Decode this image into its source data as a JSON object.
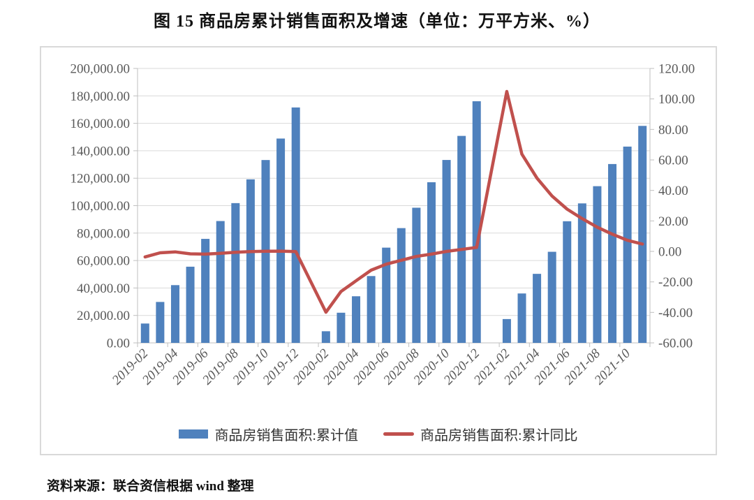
{
  "title": "图 15  商品房累计销售面积及增速（单位：万平方米、%）",
  "source": "资料来源：联合资信根据 wind 整理",
  "colors": {
    "bar": "#4F81BD",
    "line": "#C0504D",
    "grid": "#D9D9D9",
    "axis": "#BFBFBF",
    "tick_text": "#595959",
    "chart_border": "#D9D9D9"
  },
  "chart_data": {
    "type": "combo_bar_line",
    "categories": [
      "2019-02",
      "2019-03",
      "2019-04",
      "2019-05",
      "2019-06",
      "2019-07",
      "2019-08",
      "2019-09",
      "2019-10",
      "2019-11",
      "2019-12",
      "2020-01",
      "2020-02",
      "2020-03",
      "2020-04",
      "2020-05",
      "2020-06",
      "2020-07",
      "2020-08",
      "2020-09",
      "2020-10",
      "2020-11",
      "2020-12",
      "2021-01",
      "2021-02",
      "2021-03",
      "2021-04",
      "2021-05",
      "2021-06",
      "2021-07",
      "2021-08",
      "2021-09",
      "2021-10",
      "2021-11"
    ],
    "series": [
      {
        "name": "商品房销售面积:累计值",
        "type": "bar",
        "y_axis": "left",
        "color": "#4F81BD",
        "values": [
          14102,
          29829,
          42085,
          55518,
          75786,
          88783,
          101849,
          119179,
          133251,
          148905,
          171558,
          null,
          8475,
          21978,
          33973,
          48703,
          69404,
          83631,
          98486,
          117073,
          133294,
          150834,
          176086,
          null,
          17363,
          36007,
          50305,
          66383,
          88635,
          101648,
          114193,
          130332,
          143041,
          158131
        ]
      },
      {
        "name": "商品房销售面积:累计同比",
        "type": "line",
        "y_axis": "right",
        "color": "#C0504D",
        "values": [
          -3.6,
          -0.9,
          -0.3,
          -1.6,
          -1.8,
          -1.3,
          -0.6,
          -0.1,
          0.1,
          0.2,
          -0.1,
          null,
          -39.9,
          -26.3,
          -19.3,
          -12.3,
          -8.4,
          -5.8,
          -3.3,
          -1.8,
          0.0,
          1.3,
          2.6,
          null,
          104.9,
          63.8,
          48.1,
          36.3,
          27.7,
          21.5,
          15.9,
          11.3,
          7.3,
          4.8
        ]
      }
    ],
    "left_axis": {
      "min": 0,
      "max": 200000,
      "step": 20000,
      "tick_labels": [
        "200,000.00",
        "180,000.00",
        "160,000.00",
        "140,000.00",
        "120,000.00",
        "100,000.00",
        "80,000.00",
        "60,000.00",
        "40,000.00",
        "20,000.00",
        "0.00"
      ]
    },
    "right_axis": {
      "min": -60,
      "max": 120,
      "step": 20,
      "tick_labels": [
        "120.00",
        "100.00",
        "80.00",
        "60.00",
        "40.00",
        "20.00",
        "0.00",
        "-20.00",
        "-40.00",
        "-60.00"
      ]
    },
    "x_axis": {
      "label_interval": 2,
      "label_rotation_deg": 45,
      "tick_labels": [
        "2019-02",
        "2019-04",
        "2019-06",
        "2019-08",
        "2019-10",
        "2019-12",
        "2020-02",
        "2020-04",
        "2020-06",
        "2020-08",
        "2020-10",
        "2020-12",
        "2021-02",
        "2021-04",
        "2021-06",
        "2021-08",
        "2021-10"
      ]
    },
    "grid": "horizontal",
    "legend_position": "bottom"
  }
}
